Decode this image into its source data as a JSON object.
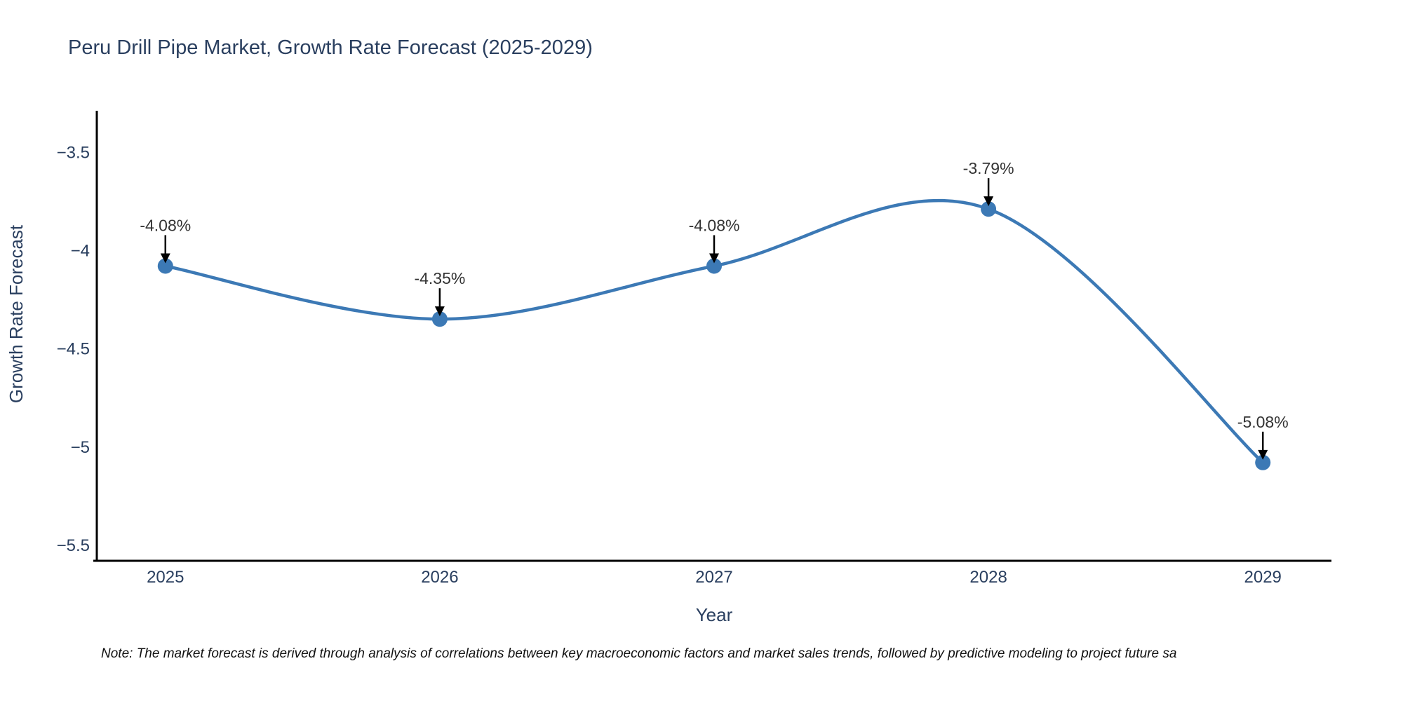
{
  "chart_data": {
    "type": "line",
    "title": "Peru Drill Pipe Market, Growth Rate Forecast (2025-2029)",
    "xlabel": "Year",
    "ylabel": "Growth Rate Forecast",
    "x": [
      2025,
      2026,
      2027,
      2028,
      2029
    ],
    "x_tick_labels": [
      "2025",
      "2026",
      "2027",
      "2028",
      "2029"
    ],
    "series": [
      {
        "name": "Growth Rate Forecast",
        "values": [
          -4.08,
          -4.35,
          -4.08,
          -3.79,
          -5.08
        ],
        "point_labels": [
          "-4.08%",
          "-4.35%",
          "-4.08%",
          "-3.79%",
          "-5.08%"
        ]
      }
    ],
    "y_tick_values": [
      -3.5,
      -4.0,
      -4.5,
      -5.0,
      -5.5
    ],
    "y_tick_labels": [
      "−3.5",
      "−4",
      "−4.5",
      "−5",
      "−5.5"
    ],
    "xlim": [
      2024.75,
      2029.25
    ],
    "ylim": [
      -5.58,
      -3.29
    ],
    "grid": false,
    "legend": false,
    "line_shape": "spline",
    "marker": "circle",
    "annotation_style": "label-with-down-arrow",
    "colors": {
      "line": "#3c79b5",
      "marker": "#3c79b5",
      "axis_line": "#000000",
      "tick_label": "#2a3f5f",
      "title": "#2a3f5f",
      "axis_title": "#2a3f5f",
      "annotation_text": "#333333",
      "annotation_arrow": "#000000",
      "background": "#ffffff"
    }
  },
  "footnote": {
    "text": "Note: The market forecast is derived through analysis of correlations between key macroeconomic factors and market sales trends, followed by predictive modeling to project future sa"
  }
}
